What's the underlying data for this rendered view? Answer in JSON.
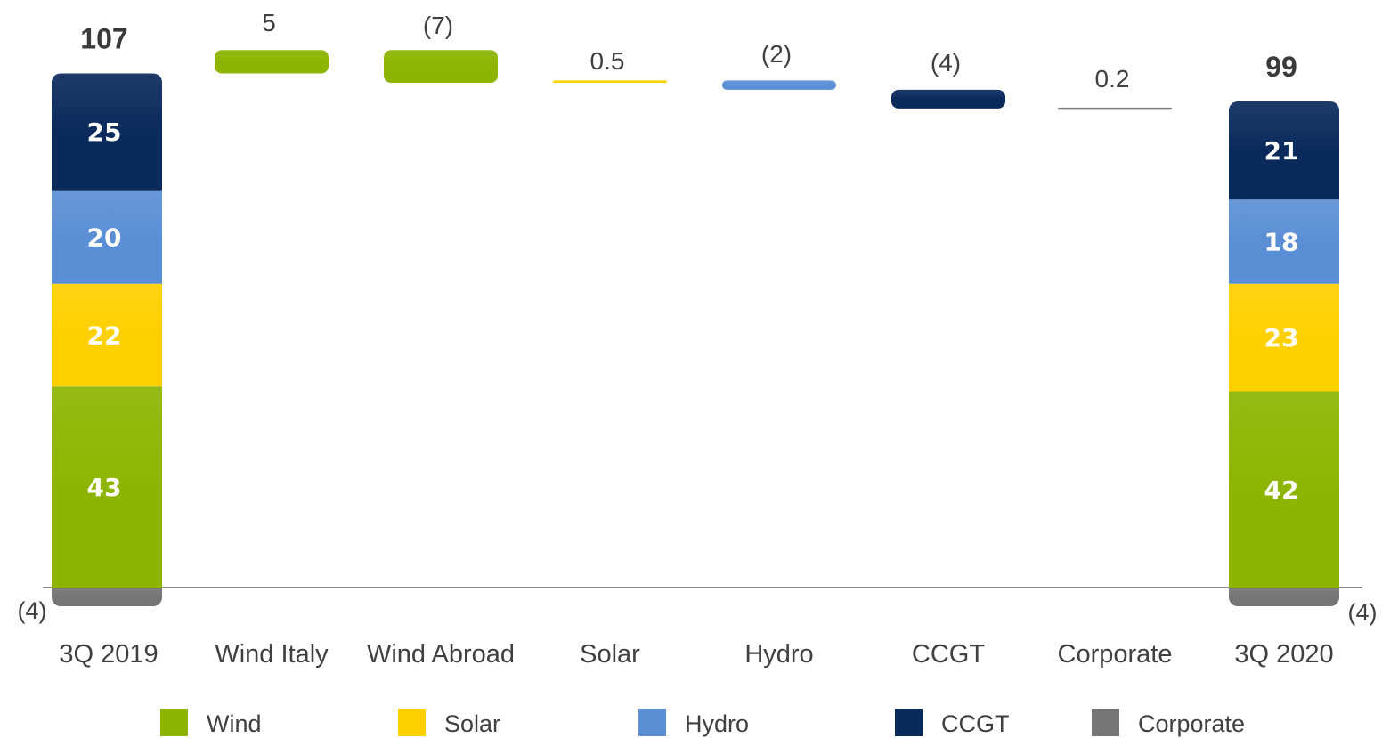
{
  "chart_data": {
    "type": "bar",
    "subtype": "waterfall",
    "categories": [
      "3Q 2019",
      "Wind Italy",
      "Wind Abroad",
      "Solar",
      "Hydro",
      "CCGT",
      "Corporate",
      "3Q 2020"
    ],
    "start": {
      "category": "3Q 2019",
      "total_label": "107",
      "segments": [
        {
          "series": "Corporate",
          "value": -4,
          "label": "(4)"
        },
        {
          "series": "Wind",
          "value": 43,
          "label": "43"
        },
        {
          "series": "Solar",
          "value": 22,
          "label": "22"
        },
        {
          "series": "Hydro",
          "value": 20,
          "label": "20"
        },
        {
          "series": "CCGT",
          "value": 25,
          "label": "25"
        }
      ]
    },
    "changes": [
      {
        "category": "Wind Italy",
        "series": "Wind",
        "value": 5,
        "label": "5"
      },
      {
        "category": "Wind Abroad",
        "series": "Wind",
        "value": -7,
        "label": "(7)"
      },
      {
        "category": "Solar",
        "series": "Solar",
        "value": 0.5,
        "label": "0.5"
      },
      {
        "category": "Hydro",
        "series": "Hydro",
        "value": -2,
        "label": "(2)"
      },
      {
        "category": "CCGT",
        "series": "CCGT",
        "value": -4,
        "label": "(4)"
      },
      {
        "category": "Corporate",
        "series": "Corporate",
        "value": 0.2,
        "label": "0.2"
      }
    ],
    "end": {
      "category": "3Q 2020",
      "total_label": "99",
      "segments": [
        {
          "series": "Corporate",
          "value": -4,
          "label": "(4)"
        },
        {
          "series": "Wind",
          "value": 42,
          "label": "42"
        },
        {
          "series": "Solar",
          "value": 23,
          "label": "23"
        },
        {
          "series": "Hydro",
          "value": 18,
          "label": "18"
        },
        {
          "series": "CCGT",
          "value": 21,
          "label": "21"
        }
      ]
    },
    "legend": [
      {
        "name": "Wind",
        "color": "#8DB500"
      },
      {
        "name": "Solar",
        "color": "#FFD000"
      },
      {
        "name": "Hydro",
        "color": "#5B8FD5"
      },
      {
        "name": "CCGT",
        "color": "#0B2A5C"
      },
      {
        "name": "Corporate",
        "color": "#757575"
      }
    ],
    "legend_position": "bottom",
    "grid": false,
    "ylim": [
      -4,
      116
    ]
  }
}
